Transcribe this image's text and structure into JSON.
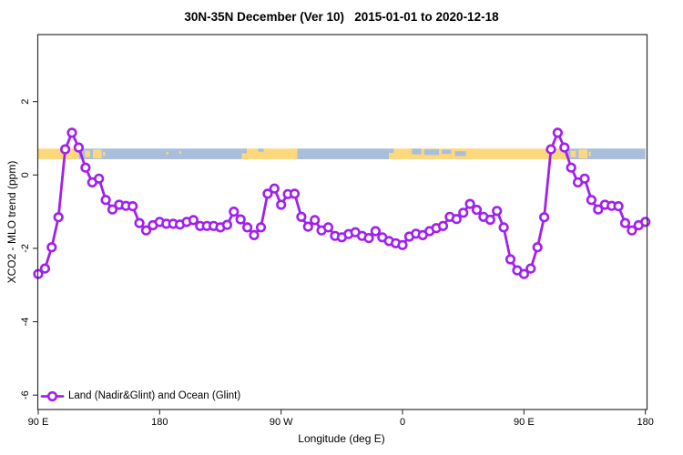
{
  "title": "30N-35N December (Ver 10)   2015-01-01 to 2020-12-18",
  "legend": {
    "label": "Land (Nadir&Glint) and Ocean (Glint)"
  },
  "axes": {
    "x": {
      "label": "Longitude (deg E)",
      "ticks": [
        {
          "deg": 0,
          "label": "90 E"
        },
        {
          "deg": 90,
          "label": "180"
        },
        {
          "deg": 180,
          "label": "90 W"
        },
        {
          "deg": 270,
          "label": "0"
        },
        {
          "deg": 360,
          "label": "90 E"
        },
        {
          "deg": 450,
          "label": "180"
        }
      ]
    },
    "y": {
      "label": "XCO2 - MLO trend (ppm)",
      "ticks": [
        {
          "value": 2,
          "label": "2"
        },
        {
          "value": 0,
          "label": "0"
        },
        {
          "value": -2,
          "label": "-2"
        },
        {
          "value": -4,
          "label": "-4"
        },
        {
          "value": -6,
          "label": "-6"
        }
      ]
    }
  },
  "colors": {
    "series": "#a020f0",
    "marker_fill": "#ffffff",
    "land_band": "#fcd87d",
    "ocean_band": "#a9bedb",
    "frame": "#303030",
    "text": "#000000"
  },
  "map_band": {
    "y_range_ppm": [
      0.43,
      0.72
    ],
    "land_segments_deg": [
      [
        0,
        30
      ],
      [
        151,
        192
      ],
      [
        260,
        392
      ]
    ],
    "ocean_segments_deg": [
      [
        30,
        151
      ],
      [
        192,
        260
      ],
      [
        392,
        450
      ]
    ],
    "land_patches_deg": [
      [
        34.5,
        38.5,
        0.2,
        0.8
      ],
      [
        40.5,
        47.0,
        0.1,
        0.92
      ],
      [
        48.0,
        49.5,
        0.3,
        0.7
      ],
      [
        95.0,
        96.5,
        0.3,
        0.55
      ],
      [
        104.5,
        106.0,
        0.25,
        0.5
      ],
      [
        394.5,
        398.5,
        0.2,
        0.8
      ],
      [
        400.5,
        407.0,
        0.1,
        0.92
      ],
      [
        408.0,
        409.5,
        0.3,
        0.7
      ]
    ],
    "ocean_patches_deg": [
      [
        151.0,
        154.5,
        0.0,
        0.45
      ],
      [
        163.0,
        167.0,
        0.0,
        0.3
      ],
      [
        260.0,
        263.5,
        0.0,
        0.4
      ],
      [
        277.0,
        284.0,
        0.0,
        0.55
      ],
      [
        286.0,
        297.0,
        0.05,
        0.6
      ],
      [
        299.0,
        306.0,
        0.1,
        0.5
      ],
      [
        309.0,
        317.0,
        0.25,
        0.7
      ]
    ]
  },
  "chart_data": {
    "type": "line",
    "title": "30N-35N December (Ver 10)   2015-01-01 to 2020-12-18",
    "xlabel": "Longitude (deg E)",
    "ylabel": "XCO2 - MLO trend (ppm)",
    "x_start_longitude": "90E",
    "x_step_deg": 5,
    "x_span_deg": 450,
    "x_wraps_globe": true,
    "ylim": [
      -6.4,
      3.8
    ],
    "grid": false,
    "legend_position": "bottom-left",
    "series": [
      {
        "name": "Land (Nadir&Glint) and Ocean (Glint)",
        "marker": "open-circle",
        "color": "#a020f0",
        "values": [
          -2.7,
          -2.55,
          -1.97,
          -1.15,
          0.7,
          1.15,
          0.75,
          0.2,
          -0.2,
          -0.1,
          -0.68,
          -0.94,
          -0.81,
          -0.84,
          -0.85,
          -1.31,
          -1.51,
          -1.37,
          -1.28,
          -1.33,
          -1.33,
          -1.35,
          -1.28,
          -1.23,
          -1.39,
          -1.39,
          -1.39,
          -1.43,
          -1.36,
          -1.0,
          -1.21,
          -1.43,
          -1.64,
          -1.43,
          -0.51,
          -0.37,
          -0.81,
          -0.52,
          -0.51,
          -1.14,
          -1.41,
          -1.23,
          -1.51,
          -1.43,
          -1.66,
          -1.7,
          -1.61,
          -1.56,
          -1.66,
          -1.72,
          -1.53,
          -1.7,
          -1.8,
          -1.86,
          -1.91,
          -1.68,
          -1.6,
          -1.64,
          -1.53,
          -1.45,
          -1.39,
          -1.14,
          -1.2,
          -1.03,
          -0.79,
          -0.95,
          -1.14,
          -1.22,
          -0.98,
          -1.43,
          -2.3,
          -2.6,
          -2.7,
          -2.55,
          -1.97,
          -1.15,
          0.7,
          1.15,
          0.75,
          0.2,
          -0.2,
          -0.1,
          -0.68,
          -0.94,
          -0.81,
          -0.84,
          -0.85,
          -1.31,
          -1.51,
          -1.37,
          -1.28
        ]
      }
    ]
  }
}
